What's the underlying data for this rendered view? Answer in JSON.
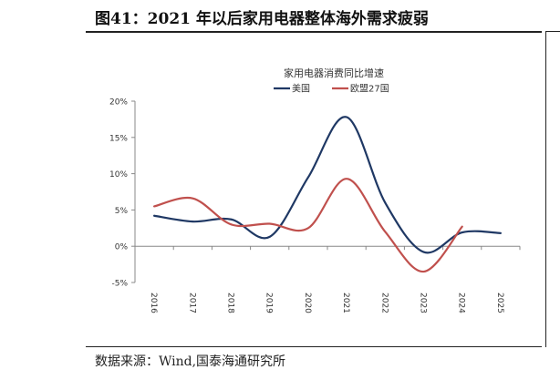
{
  "figure": {
    "title": "图41：2021 年以后家用电器整体海外需求疲弱",
    "source": "数据来源：Wind,国泰海通研究所"
  },
  "chart_data": {
    "type": "line",
    "title": "家用电器消费同比增速",
    "xlabel": "",
    "ylabel": "",
    "x": [
      "2016",
      "2017",
      "2018",
      "2019",
      "2020",
      "2021",
      "2022",
      "2023",
      "2024",
      "2025"
    ],
    "ylim": [
      -5,
      20
    ],
    "yticks": [
      "20%",
      "15%",
      "10%",
      "5%",
      "0%",
      "-5%"
    ],
    "grid": false,
    "legend": "top-center",
    "series": [
      {
        "name": "美国",
        "color": "#1f3864",
        "values": [
          4.2,
          3.4,
          3.7,
          1.3,
          9.5,
          17.8,
          6.0,
          -0.8,
          1.9,
          1.8
        ]
      },
      {
        "name": "欧盟27国",
        "color": "#c0504d",
        "values": [
          5.5,
          6.6,
          3.0,
          3.1,
          2.5,
          9.3,
          2.0,
          -3.5,
          2.7,
          null
        ]
      }
    ]
  }
}
